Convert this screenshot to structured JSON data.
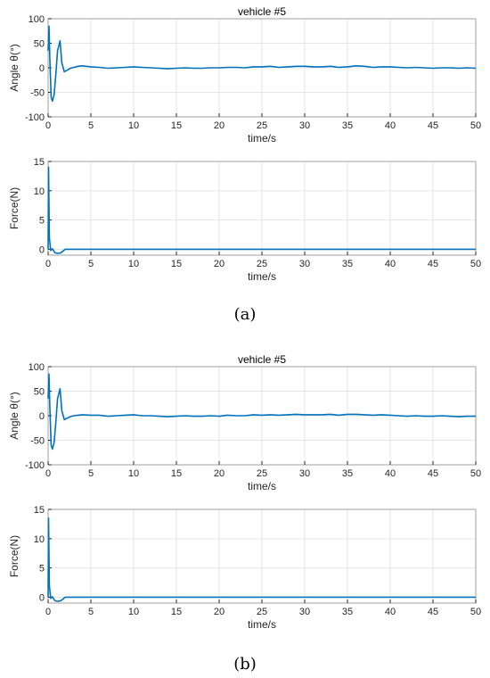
{
  "chart_data": [
    {
      "type": "line",
      "panel": "a",
      "title": "vehicle #5",
      "xlabel": "time/s",
      "ylabel": "Angle  θ(°)",
      "xlim": [
        0,
        50
      ],
      "ylim": [
        -100,
        100
      ],
      "xticks": [
        0,
        5,
        10,
        15,
        20,
        25,
        30,
        35,
        40,
        45,
        50
      ],
      "yticks": [
        100,
        50,
        0,
        -50,
        -100
      ],
      "grid": true,
      "color": "#0072BD",
      "x": [
        0,
        0.1,
        0.2,
        0.35,
        0.5,
        0.7,
        0.9,
        1.1,
        1.4,
        1.6,
        1.9,
        2.2,
        2.6,
        3,
        3.5,
        4,
        5,
        6,
        7,
        8,
        9,
        10,
        11,
        12,
        13,
        14,
        15,
        16,
        17,
        18,
        19,
        20,
        21,
        22,
        23,
        24,
        25,
        26,
        27,
        28,
        29,
        30,
        31,
        32,
        33,
        34,
        35,
        36,
        37,
        38,
        39,
        40,
        41,
        42,
        43,
        44,
        45,
        46,
        47,
        48,
        49,
        50
      ],
      "y": [
        35,
        85,
        20,
        -60,
        -68,
        -55,
        -15,
        35,
        55,
        10,
        -8,
        -5,
        -1,
        1,
        3,
        4,
        2,
        1,
        -1,
        0,
        1,
        2,
        1,
        0,
        -1,
        -2,
        -1,
        0,
        -1,
        -1,
        0,
        0,
        1,
        1,
        0,
        2,
        2,
        3,
        1,
        2,
        3,
        3,
        2,
        2,
        3,
        1,
        2,
        4,
        3,
        1,
        2,
        2,
        1,
        0,
        1,
        0,
        -1,
        0,
        0,
        -1,
        0,
        -1
      ]
    },
    {
      "type": "line",
      "panel": "a",
      "xlabel": "time/s",
      "ylabel": "Force(N)",
      "xlim": [
        0,
        50
      ],
      "ylim": [
        -1,
        15
      ],
      "xticks": [
        0,
        5,
        10,
        15,
        20,
        25,
        30,
        35,
        40,
        45,
        50
      ],
      "yticks": [
        15,
        10,
        5,
        0
      ],
      "grid": true,
      "color": "#0072BD",
      "x": [
        0,
        0.05,
        0.15,
        0.3,
        0.5,
        0.8,
        1.1,
        1.5,
        2,
        3,
        5,
        10,
        15,
        20,
        25,
        30,
        35,
        40,
        45,
        50
      ],
      "y": [
        0,
        14,
        2,
        -0.2,
        0.1,
        -0.6,
        -0.7,
        -0.6,
        0,
        0,
        0,
        0,
        0,
        0,
        0,
        0,
        0,
        0,
        0,
        0
      ]
    },
    {
      "type": "line",
      "panel": "b",
      "title": "vehicle #5",
      "xlabel": "time/s",
      "ylabel": "Angle  θ(°)",
      "xlim": [
        0,
        50
      ],
      "ylim": [
        -100,
        100
      ],
      "xticks": [
        0,
        5,
        10,
        15,
        20,
        25,
        30,
        35,
        40,
        45,
        50
      ],
      "yticks": [
        100,
        50,
        0,
        -50,
        -100
      ],
      "grid": true,
      "color": "#0072BD",
      "x": [
        0,
        0.1,
        0.2,
        0.35,
        0.5,
        0.7,
        0.9,
        1.1,
        1.4,
        1.6,
        1.9,
        2.2,
        2.6,
        3,
        3.5,
        4,
        5,
        6,
        7,
        8,
        9,
        10,
        11,
        12,
        13,
        14,
        15,
        16,
        17,
        18,
        19,
        20,
        21,
        22,
        23,
        24,
        25,
        26,
        27,
        28,
        29,
        30,
        31,
        32,
        33,
        34,
        35,
        36,
        37,
        38,
        39,
        40,
        41,
        42,
        43,
        44,
        45,
        46,
        47,
        48,
        49,
        50
      ],
      "y": [
        35,
        85,
        20,
        -60,
        -68,
        -55,
        -15,
        35,
        55,
        10,
        -8,
        -5,
        -2,
        0,
        1,
        2,
        1,
        1,
        -1,
        0,
        1,
        2,
        0,
        0,
        -1,
        -2,
        -1,
        0,
        -1,
        -1,
        0,
        -1,
        1,
        0,
        0,
        2,
        1,
        2,
        1,
        2,
        3,
        2,
        2,
        2,
        3,
        1,
        3,
        3,
        2,
        1,
        2,
        1,
        0,
        -1,
        0,
        -1,
        -1,
        0,
        -1,
        -2,
        -1,
        -1
      ]
    },
    {
      "type": "line",
      "panel": "b",
      "xlabel": "time/s",
      "ylabel": "Force(N)",
      "xlim": [
        0,
        50
      ],
      "ylim": [
        -1,
        15
      ],
      "xticks": [
        0,
        5,
        10,
        15,
        20,
        25,
        30,
        35,
        40,
        45,
        50
      ],
      "yticks": [
        15,
        10,
        5,
        0
      ],
      "grid": true,
      "color": "#0072BD",
      "x": [
        0,
        0.05,
        0.15,
        0.3,
        0.5,
        0.8,
        1.1,
        1.5,
        2,
        3,
        5,
        10,
        15,
        20,
        25,
        30,
        35,
        40,
        45,
        50
      ],
      "y": [
        0,
        13.5,
        2,
        -0.2,
        0.1,
        -0.6,
        -0.7,
        -0.6,
        0,
        0,
        0,
        0,
        0,
        0,
        0,
        0,
        0,
        0,
        0,
        0
      ]
    }
  ],
  "captions": [
    "(a)",
    "(b)"
  ]
}
